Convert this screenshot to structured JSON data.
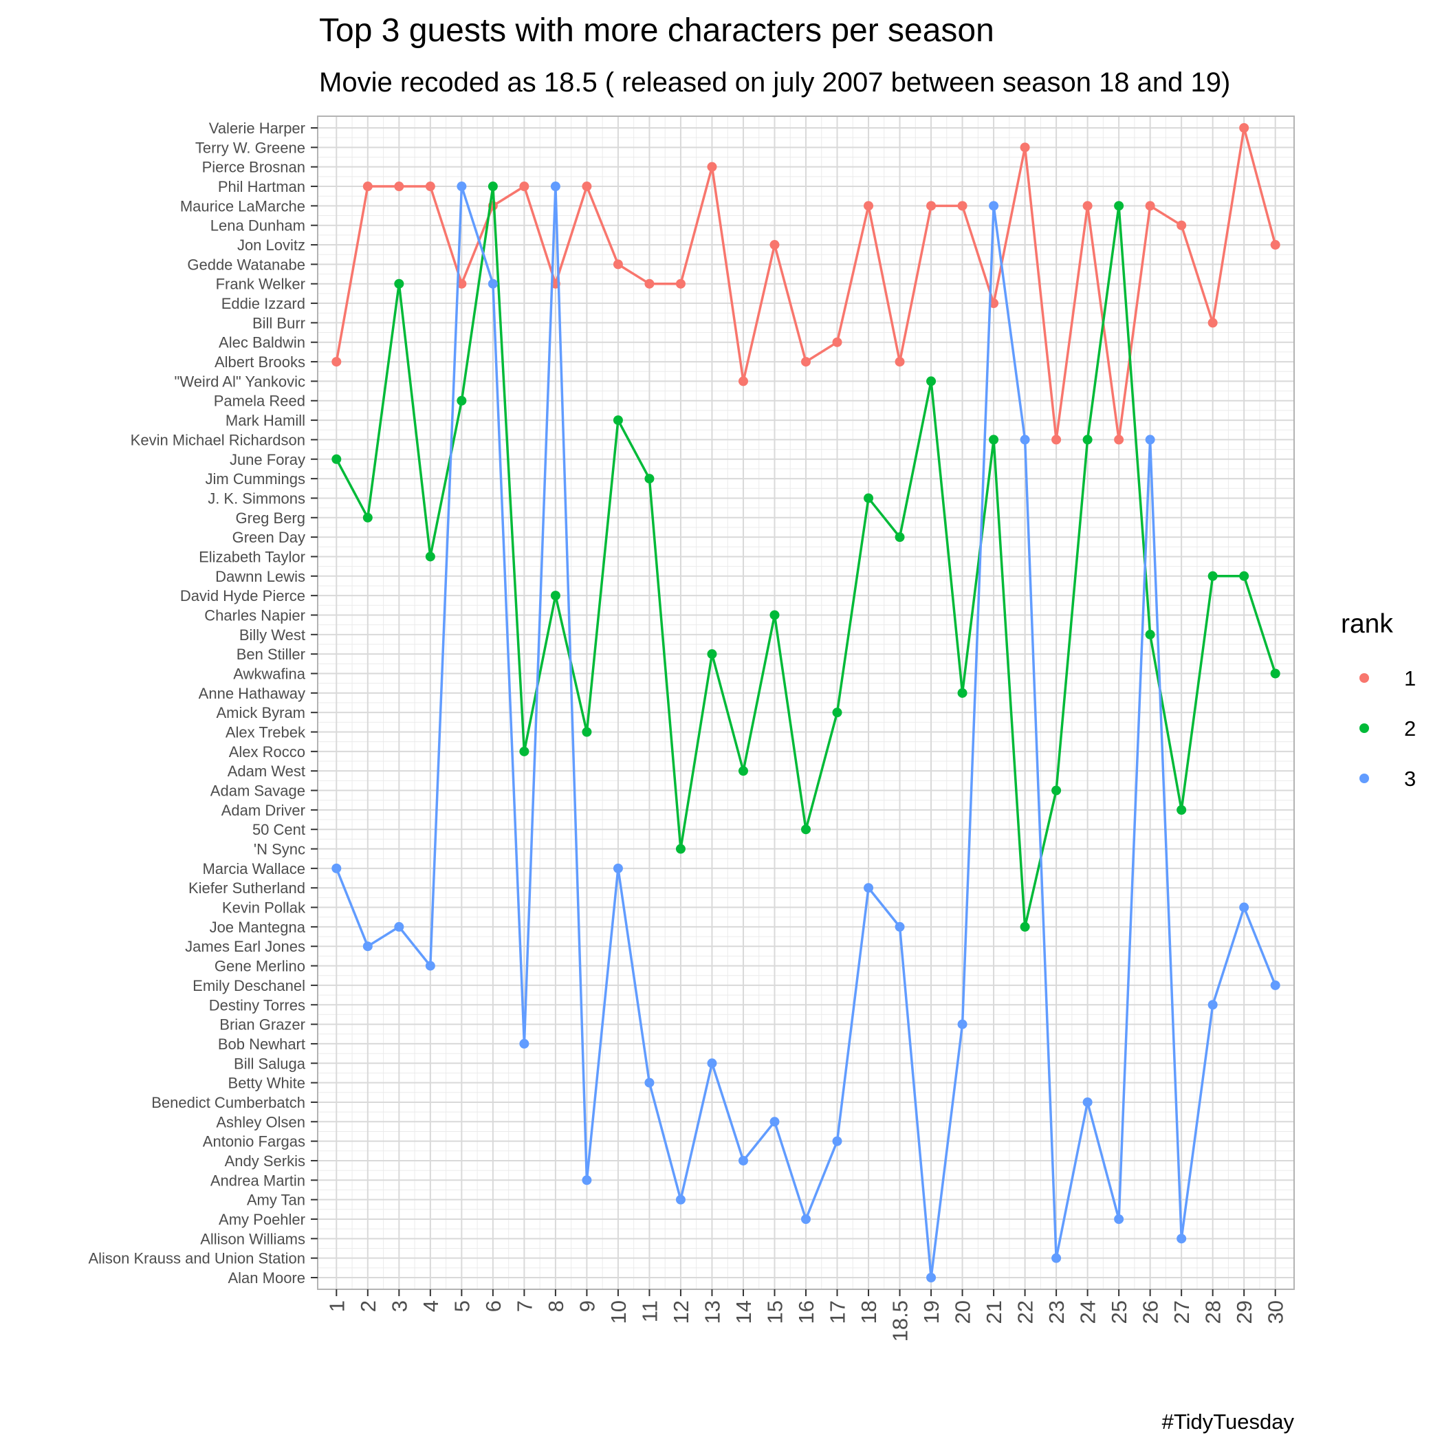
{
  "chart_data": {
    "type": "line",
    "title": "Top 3 guests with more characters per season",
    "subtitle": "Movie recoded as 18.5 ( released on july 2007 between season 18 and 19)",
    "caption": "#TidyTuesday",
    "legend": {
      "title": "rank",
      "position": "right"
    },
    "grid": true,
    "x_categories": [
      "1",
      "2",
      "3",
      "4",
      "5",
      "6",
      "7",
      "8",
      "9",
      "10",
      "11",
      "12",
      "13",
      "14",
      "15",
      "16",
      "17",
      "18",
      "18.5",
      "19",
      "20",
      "21",
      "22",
      "23",
      "24",
      "25",
      "26",
      "27",
      "28",
      "29",
      "30"
    ],
    "y_categories": [
      "Alan Moore",
      "Alison Krauss and Union Station",
      "Allison Williams",
      "Amy Poehler",
      "Amy Tan",
      "Andrea Martin",
      "Andy Serkis",
      "Antonio Fargas",
      "Ashley Olsen",
      "Benedict Cumberbatch",
      "Betty White",
      "Bill Saluga",
      "Bob Newhart",
      "Brian Grazer",
      "Destiny Torres",
      "Emily Deschanel",
      "Gene Merlino",
      "James Earl Jones",
      "Joe Mantegna",
      "Kevin Pollak",
      "Kiefer Sutherland",
      "Marcia Wallace",
      "'N Sync",
      "50 Cent",
      "Adam Driver",
      "Adam Savage",
      "Adam West",
      "Alex Rocco",
      "Alex Trebek",
      "Amick Byram",
      "Anne Hathaway",
      "Awkwafina",
      "Ben Stiller",
      "Billy West",
      "Charles Napier",
      "David Hyde Pierce",
      "Dawnn Lewis",
      "Elizabeth Taylor",
      "Green Day",
      "Greg Berg",
      "J. K. Simmons",
      "Jim Cummings",
      "June Foray",
      "Kevin Michael Richardson",
      "Mark Hamill",
      "Pamela Reed",
      "\"Weird Al\" Yankovic",
      "Albert Brooks",
      "Alec Baldwin",
      "Bill Burr",
      "Eddie Izzard",
      "Frank Welker",
      "Gedde Watanabe",
      "Jon Lovitz",
      "Lena Dunham",
      "Maurice LaMarche",
      "Phil Hartman",
      "Pierce Brosnan",
      "Terry W. Greene",
      "Valerie Harper"
    ],
    "series": [
      {
        "name": "1",
        "color": "#F8766D",
        "values": [
          "Albert Brooks",
          "Phil Hartman",
          "Phil Hartman",
          "Phil Hartman",
          "Frank Welker",
          "Maurice LaMarche",
          "Phil Hartman",
          "Frank Welker",
          "Phil Hartman",
          "Gedde Watanabe",
          "Frank Welker",
          "Frank Welker",
          "Pierce Brosnan",
          "\"Weird Al\" Yankovic",
          "Jon Lovitz",
          "Albert Brooks",
          "Alec Baldwin",
          "Maurice LaMarche",
          "Albert Brooks",
          "Maurice LaMarche",
          "Maurice LaMarche",
          "Eddie Izzard",
          "Terry W. Greene",
          "Kevin Michael Richardson",
          "Maurice LaMarche",
          "Kevin Michael Richardson",
          "Maurice LaMarche",
          "Lena Dunham",
          "Bill Burr",
          "Valerie Harper",
          "Jon Lovitz"
        ]
      },
      {
        "name": "2",
        "color": "#00BA38",
        "values": [
          "June Foray",
          "Greg Berg",
          "Frank Welker",
          "Elizabeth Taylor",
          "Pamela Reed",
          "Phil Hartman",
          "Alex Rocco",
          "David Hyde Pierce",
          "Alex Trebek",
          "Mark Hamill",
          "Jim Cummings",
          "'N Sync",
          "Ben Stiller",
          "Adam West",
          "Charles Napier",
          "50 Cent",
          "Amick Byram",
          "J. K. Simmons",
          "Green Day",
          "\"Weird Al\" Yankovic",
          "Anne Hathaway",
          "Kevin Michael Richardson",
          "Joe Mantegna",
          "Adam Savage",
          "Kevin Michael Richardson",
          "Maurice LaMarche",
          "Billy West",
          "Adam Driver",
          "Dawnn Lewis",
          "Dawnn Lewis",
          "Awkwafina"
        ]
      },
      {
        "name": "3",
        "color": "#619CFF",
        "values": [
          "Marcia Wallace",
          "James Earl Jones",
          "Joe Mantegna",
          "Gene Merlino",
          "Phil Hartman",
          "Frank Welker",
          "Bob Newhart",
          "Phil Hartman",
          "Andrea Martin",
          "Marcia Wallace",
          "Betty White",
          "Amy Tan",
          "Bill Saluga",
          "Andy Serkis",
          "Ashley Olsen",
          "Amy Poehler",
          "Antonio Fargas",
          "Kiefer Sutherland",
          "Joe Mantegna",
          "Alan Moore",
          "Brian Grazer",
          "Maurice LaMarche",
          "Kevin Michael Richardson",
          "Alison Krauss and Union Station",
          "Benedict Cumberbatch",
          "Amy Poehler",
          "Kevin Michael Richardson",
          "Allison Williams",
          "Destiny Torres",
          "Kevin Pollak",
          "Emily Deschanel"
        ]
      }
    ]
  }
}
